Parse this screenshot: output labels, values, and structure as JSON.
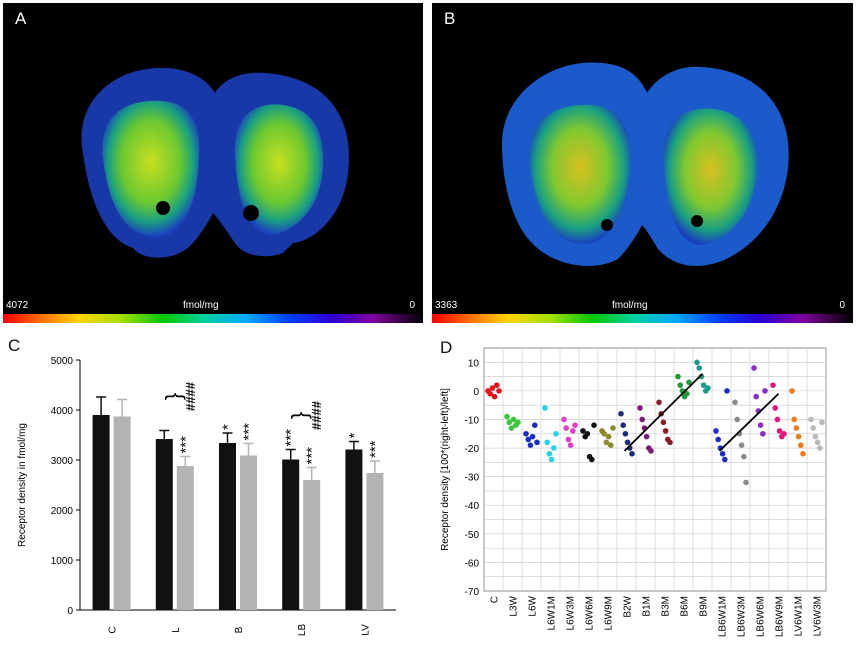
{
  "panels": {
    "A": {
      "label": "A",
      "scale_max": "4072",
      "scale_unit": "fmol/mg",
      "scale_min": "0"
    },
    "B": {
      "label": "B",
      "scale_max": "3363",
      "scale_unit": "fmol/mg",
      "scale_min": "0"
    }
  },
  "chart_data": [
    {
      "label": "C",
      "type": "bar",
      "ylabel": "Receptor density in fmol/mg",
      "ylim": [
        0,
        5000
      ],
      "yticks": [
        0,
        1000,
        2000,
        3000,
        4000,
        5000
      ],
      "categories": [
        "C",
        "L",
        "B",
        "LB",
        "LV"
      ],
      "series": [
        {
          "name": "black",
          "color": "#111111",
          "values": [
            3900,
            3420,
            3340,
            3010,
            3210
          ],
          "errors": [
            360,
            170,
            200,
            200,
            160
          ],
          "marks": [
            "",
            "",
            "*",
            "***",
            "*"
          ]
        },
        {
          "name": "gray",
          "color": "#b3b3b3",
          "values": [
            3870,
            2880,
            3090,
            2600,
            2740
          ],
          "errors": [
            340,
            190,
            240,
            250,
            240
          ],
          "marks": [
            "",
            "***",
            "***",
            "***",
            "***"
          ]
        }
      ],
      "brackets": [
        {
          "category": "L",
          "text": "####"
        },
        {
          "category": "LB",
          "text": "####"
        }
      ]
    },
    {
      "label": "D",
      "type": "scatter",
      "ylabel": "Receptor density [100*(right-left)/left]",
      "ylim": [
        -70,
        15
      ],
      "yticks": [
        10,
        0,
        -10,
        -20,
        -30,
        -40,
        -50,
        -60,
        -70
      ],
      "categories": [
        "C",
        "L3W",
        "L6W",
        "L6W1M",
        "L6W3M",
        "L6W6M",
        "L6W9M",
        "B2W",
        "B1M",
        "B3M",
        "B6M",
        "B9M",
        "LB6W1M",
        "LB6W3M",
        "LB6W6M",
        "LB6W9M",
        "LV6W1M",
        "LV6W3M"
      ],
      "colors": [
        "#e8141c",
        "#3cc83c",
        "#1c2ccc",
        "#22d4e8",
        "#e83cc8",
        "#111111",
        "#8a8a28",
        "#1c2a7a",
        "#7a1c7a",
        "#8c1c24",
        "#1e9a3c",
        "#1a9a8a",
        "#1c2ccc",
        "#8a8a8a",
        "#8a2cc8",
        "#e8147a",
        "#f07a14",
        "#b8b8b8"
      ],
      "points": [
        [
          0,
          -1,
          1,
          -2,
          2,
          0
        ],
        [
          -9,
          -11,
          -13,
          -10,
          -12,
          -11
        ],
        [
          -15,
          -17,
          -19,
          -16,
          -12,
          -18
        ],
        [
          -6,
          -18,
          -22,
          -24,
          -20,
          -15
        ],
        [
          -10,
          -13,
          -17,
          -19,
          -14,
          -12
        ],
        [
          -14,
          -16,
          -15,
          -23,
          -24,
          -12
        ],
        [
          -14,
          -15,
          -18,
          -16,
          -19,
          -13
        ],
        [
          -8,
          -12,
          -15,
          -18,
          -20,
          -22
        ],
        [
          -6,
          -10,
          -13,
          -16,
          -20,
          -21
        ],
        [
          -4,
          -8,
          -11,
          -14,
          -17,
          -18
        ],
        [
          5,
          2,
          0,
          -2,
          -1,
          3
        ],
        [
          10,
          8,
          5,
          2,
          0,
          1
        ],
        [
          -14,
          -17,
          -20,
          -22,
          -24,
          0
        ],
        [
          -4,
          -10,
          -15,
          -19,
          -23,
          -32
        ],
        [
          8,
          -2,
          -7,
          -12,
          -15,
          0
        ],
        [
          2,
          -6,
          -10,
          -14,
          -16,
          -15
        ],
        [
          0,
          -10,
          -13,
          -16,
          -19,
          -22
        ],
        [
          -10,
          -13,
          -16,
          -18,
          -20,
          -11
        ]
      ],
      "trendlines": [
        {
          "from_category": "B2W",
          "to_category": "B9M",
          "y_start": -21,
          "y_end": 6
        },
        {
          "from_category": "LB6W1M",
          "to_category": "LB6W9M",
          "y_start": -21,
          "y_end": -1
        }
      ]
    }
  ]
}
